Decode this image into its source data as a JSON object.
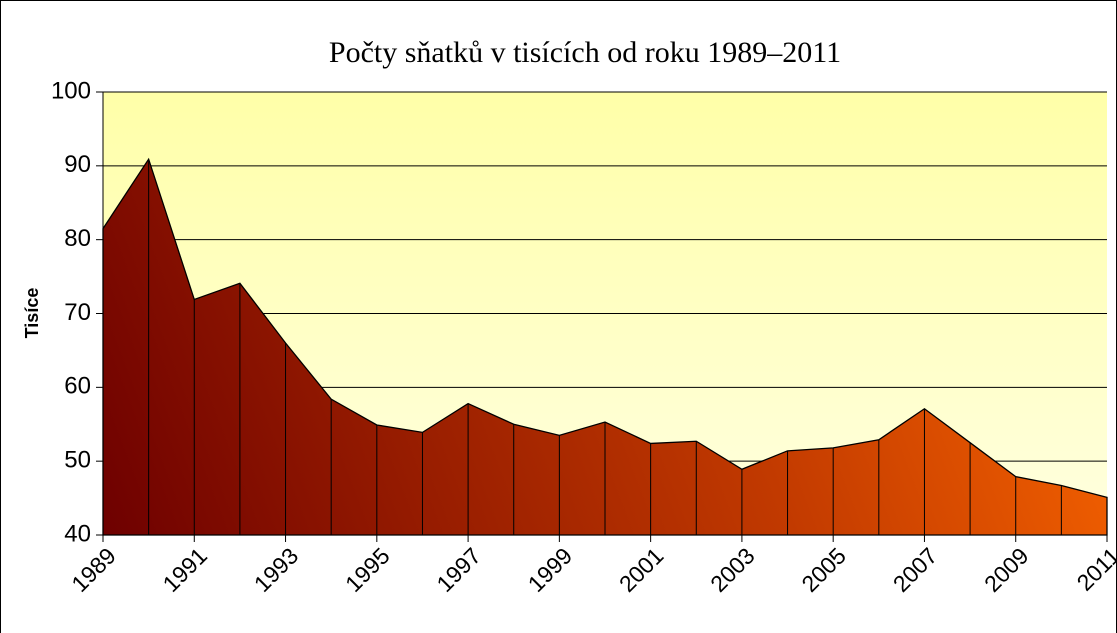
{
  "chart_data": {
    "type": "area",
    "title": "Počty sňatků v tisících od roku 1989–2011",
    "y_label": "Tisíce",
    "x": [
      1989,
      1990,
      1991,
      1992,
      1993,
      1994,
      1995,
      1996,
      1997,
      1998,
      1999,
      2000,
      2001,
      2002,
      2003,
      2004,
      2005,
      2006,
      2007,
      2008,
      2009,
      2010,
      2011
    ],
    "values": [
      81.5,
      90.9,
      71.9,
      74.1,
      66.0,
      58.4,
      54.9,
      53.9,
      57.8,
      55.0,
      53.5,
      55.3,
      52.4,
      52.7,
      48.9,
      51.4,
      51.8,
      52.9,
      57.1,
      52.5,
      47.9,
      46.7,
      45.1
    ],
    "xlim": [
      1989,
      2011
    ],
    "xticks": [
      1989,
      1991,
      1993,
      1995,
      1997,
      1999,
      2001,
      2003,
      2005,
      2007,
      2009,
      2011
    ],
    "ylim": [
      40,
      100
    ],
    "yticks": [
      40,
      50,
      60,
      70,
      80,
      90,
      100
    ],
    "grid": true,
    "color": "#c84000"
  }
}
